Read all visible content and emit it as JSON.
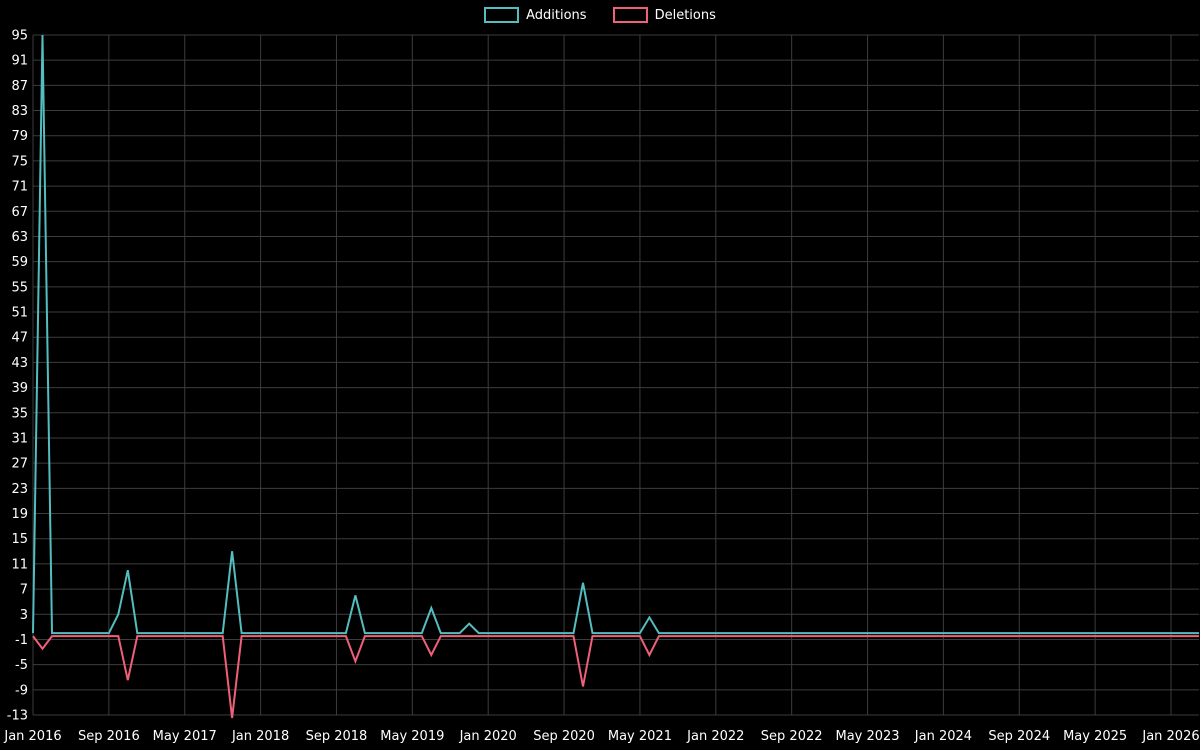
{
  "legend": {
    "items": [
      {
        "label": "Additions"
      },
      {
        "label": "Deletions"
      }
    ]
  },
  "chart_data": {
    "type": "line",
    "title": "",
    "legend_position": "top-center",
    "grid": true,
    "background": "#000000",
    "colors": {
      "additions": "#54bdc0",
      "deletions": "#ef6079",
      "grid": "#3d3d3d",
      "text": "#ffffff"
    },
    "x_axis": {
      "start_month": "Jan 2016",
      "end_month": "Jan 2026",
      "months_total": 120,
      "tick_every_months": 8,
      "tick_labels": [
        "Jan 2016",
        "Sep 2016",
        "May 2017",
        "Jan 2018",
        "Sep 2018",
        "May 2019",
        "Jan 2020",
        "Sep 2020",
        "May 2021",
        "Jan 2022",
        "Sep 2022",
        "May 2023",
        "Jan 2024",
        "Sep 2024",
        "May 2025",
        "Jan 2026"
      ]
    },
    "y_axis": {
      "min": -13,
      "max": 95,
      "tick_step": 4,
      "tick_labels": [
        95,
        91,
        87,
        83,
        79,
        75,
        71,
        67,
        63,
        59,
        55,
        51,
        47,
        43,
        39,
        35,
        31,
        27,
        23,
        19,
        15,
        11,
        7,
        3,
        -1,
        -5,
        -9,
        -13
      ]
    },
    "series": [
      {
        "name": "Additions",
        "color_key": "additions",
        "default_value": 0,
        "points": [
          {
            "month_index": 1,
            "month": "Feb 2016",
            "value": 95
          },
          {
            "month_index": 9,
            "month": "Oct 2016",
            "value": 3
          },
          {
            "month_index": 10,
            "month": "Nov 2016",
            "value": 10
          },
          {
            "month_index": 21,
            "month": "Oct 2017",
            "value": 13
          },
          {
            "month_index": 34,
            "month": "Nov 2018",
            "value": 6
          },
          {
            "month_index": 42,
            "month": "Jul 2019",
            "value": 4
          },
          {
            "month_index": 46,
            "month": "Nov 2019",
            "value": 1.5
          },
          {
            "month_index": 58,
            "month": "Nov 2020",
            "value": 8
          },
          {
            "month_index": 65,
            "month": "Jun 2021",
            "value": 2.5
          }
        ]
      },
      {
        "name": "Deletions",
        "color_key": "deletions",
        "default_value": 0,
        "points": [
          {
            "month_index": 1,
            "month": "Feb 2016",
            "value": -2
          },
          {
            "month_index": 10,
            "month": "Nov 2016",
            "value": -7
          },
          {
            "month_index": 21,
            "month": "Oct 2017",
            "value": -13
          },
          {
            "month_index": 34,
            "month": "Nov 2018",
            "value": -4
          },
          {
            "month_index": 42,
            "month": "Jul 2019",
            "value": -3
          },
          {
            "month_index": 58,
            "month": "Nov 2020",
            "value": -8
          },
          {
            "month_index": 65,
            "month": "Jun 2021",
            "value": -3
          }
        ]
      }
    ]
  }
}
